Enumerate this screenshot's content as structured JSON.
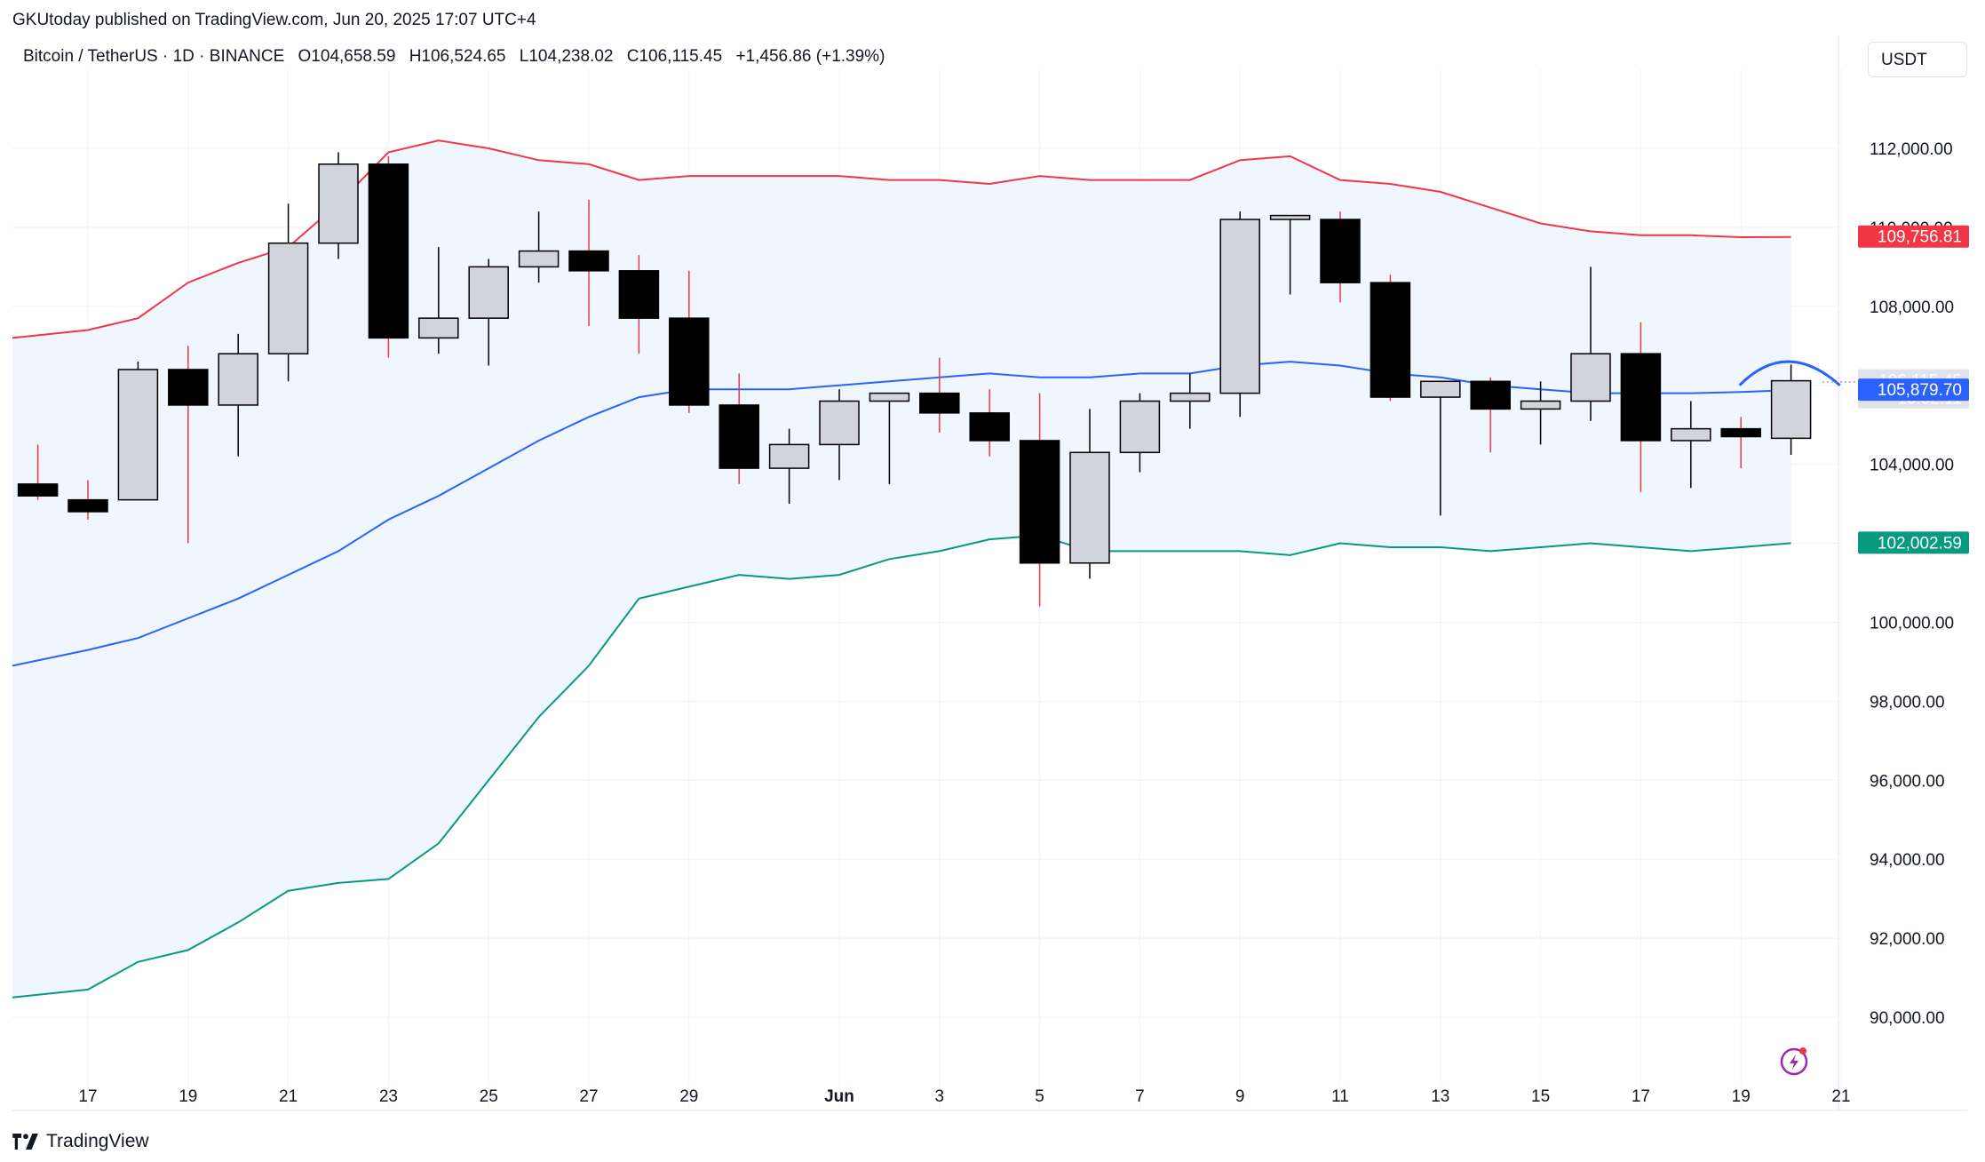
{
  "header": {
    "published": "GKUtoday published on TradingView.com, Jun 20, 2025 17:07 UTC+4"
  },
  "legend": {
    "symbol": "Bitcoin / TetherUS · 1D · BINANCE",
    "open": "O104,658.59",
    "high": "H106,524.65",
    "low": "L104,238.02",
    "close": "C106,115.45",
    "change": "+1,456.86 (+1.39%)"
  },
  "currency_label": "USDT",
  "brand_label": "TradingView",
  "colors": {
    "upper_band": "#f23645",
    "basis": "#2962ff",
    "lower_band": "#089981",
    "band_fill": "#f0f6fd",
    "candle_up_fill": "#d1d4dc",
    "candle_down_fill": "#000000",
    "grid": "#f0f3fa"
  },
  "price_tags": {
    "upper": "109,756.81",
    "last_price": "106,115.45",
    "countdown": "10:52:11",
    "basis": "105,879.70",
    "lower": "102,002.59"
  },
  "chart_data": {
    "type": "candlestick",
    "title": "Bitcoin / TetherUS · 1D · BINANCE",
    "indicator": "Bollinger Bands",
    "y_axis": {
      "ticks": [
        90000,
        92000,
        94000,
        96000,
        98000,
        100000,
        102000,
        104000,
        106000,
        108000,
        110000,
        112000
      ],
      "ylim": [
        88600,
        114400
      ],
      "side": "right"
    },
    "x_axis": {
      "ticks": [
        {
          "date": "2025-05-17",
          "label": "17"
        },
        {
          "date": "2025-05-19",
          "label": "19"
        },
        {
          "date": "2025-05-21",
          "label": "21"
        },
        {
          "date": "2025-05-23",
          "label": "23"
        },
        {
          "date": "2025-05-25",
          "label": "25"
        },
        {
          "date": "2025-05-27",
          "label": "27"
        },
        {
          "date": "2025-05-29",
          "label": "29"
        },
        {
          "date": "2025-06-01",
          "label": "Jun"
        },
        {
          "date": "2025-06-03",
          "label": "3"
        },
        {
          "date": "2025-06-05",
          "label": "5"
        },
        {
          "date": "2025-06-07",
          "label": "7"
        },
        {
          "date": "2025-06-09",
          "label": "9"
        },
        {
          "date": "2025-06-11",
          "label": "11"
        },
        {
          "date": "2025-06-13",
          "label": "13"
        },
        {
          "date": "2025-06-15",
          "label": "15"
        },
        {
          "date": "2025-06-17",
          "label": "17"
        },
        {
          "date": "2025-06-19",
          "label": "19"
        },
        {
          "date": "2025-06-21",
          "label": "21"
        }
      ]
    },
    "candles": [
      {
        "date": "2025-05-16",
        "o": 103500,
        "h": 104500,
        "l": 103100,
        "c": 103200
      },
      {
        "date": "2025-05-17",
        "o": 103100,
        "h": 103600,
        "l": 102600,
        "c": 102800
      },
      {
        "date": "2025-05-18",
        "o": 103100,
        "h": 106600,
        "l": 103100,
        "c": 106400
      },
      {
        "date": "2025-05-19",
        "o": 106400,
        "h": 107000,
        "l": 102000,
        "c": 105500
      },
      {
        "date": "2025-05-20",
        "o": 105500,
        "h": 107300,
        "l": 104200,
        "c": 106800
      },
      {
        "date": "2025-05-21",
        "o": 106800,
        "h": 110600,
        "l": 106100,
        "c": 109600
      },
      {
        "date": "2025-05-22",
        "o": 109600,
        "h": 111900,
        "l": 109200,
        "c": 111600
      },
      {
        "date": "2025-05-23",
        "o": 111600,
        "h": 111800,
        "l": 106700,
        "c": 107200
      },
      {
        "date": "2025-05-24",
        "o": 107200,
        "h": 109500,
        "l": 106800,
        "c": 107700
      },
      {
        "date": "2025-05-25",
        "o": 107700,
        "h": 109200,
        "l": 106500,
        "c": 109000
      },
      {
        "date": "2025-05-26",
        "o": 109000,
        "h": 110400,
        "l": 108600,
        "c": 109400
      },
      {
        "date": "2025-05-27",
        "o": 109400,
        "h": 110700,
        "l": 107500,
        "c": 108900
      },
      {
        "date": "2025-05-28",
        "o": 108900,
        "h": 109300,
        "l": 106800,
        "c": 107700
      },
      {
        "date": "2025-05-29",
        "o": 107700,
        "h": 108900,
        "l": 105300,
        "c": 105500
      },
      {
        "date": "2025-05-30",
        "o": 105500,
        "h": 106300,
        "l": 103500,
        "c": 103900
      },
      {
        "date": "2025-05-31",
        "o": 103900,
        "h": 104900,
        "l": 103000,
        "c": 104500
      },
      {
        "date": "2025-06-01",
        "o": 104500,
        "h": 105900,
        "l": 103600,
        "c": 105600
      },
      {
        "date": "2025-06-02",
        "o": 105600,
        "h": 105800,
        "l": 103500,
        "c": 105800
      },
      {
        "date": "2025-06-03",
        "o": 105800,
        "h": 106700,
        "l": 104800,
        "c": 105300
      },
      {
        "date": "2025-06-04",
        "o": 105300,
        "h": 105900,
        "l": 104200,
        "c": 104600
      },
      {
        "date": "2025-06-05",
        "o": 104600,
        "h": 105800,
        "l": 100400,
        "c": 101500
      },
      {
        "date": "2025-06-06",
        "o": 101500,
        "h": 105400,
        "l": 101100,
        "c": 104300
      },
      {
        "date": "2025-06-07",
        "o": 104300,
        "h": 105800,
        "l": 103800,
        "c": 105600
      },
      {
        "date": "2025-06-08",
        "o": 105600,
        "h": 106300,
        "l": 104900,
        "c": 105800
      },
      {
        "date": "2025-06-09",
        "o": 105800,
        "h": 110400,
        "l": 105200,
        "c": 110200
      },
      {
        "date": "2025-06-10",
        "o": 110200,
        "h": 110300,
        "l": 108300,
        "c": 110300
      },
      {
        "date": "2025-06-11",
        "o": 110200,
        "h": 110400,
        "l": 108100,
        "c": 108600
      },
      {
        "date": "2025-06-12",
        "o": 108600,
        "h": 108800,
        "l": 105600,
        "c": 105700
      },
      {
        "date": "2025-06-13",
        "o": 105700,
        "h": 106100,
        "l": 102700,
        "c": 106100
      },
      {
        "date": "2025-06-14",
        "o": 106100,
        "h": 106200,
        "l": 104300,
        "c": 105400
      },
      {
        "date": "2025-06-15",
        "o": 105400,
        "h": 106100,
        "l": 104500,
        "c": 105600
      },
      {
        "date": "2025-06-16",
        "o": 105600,
        "h": 109000,
        "l": 105100,
        "c": 106800
      },
      {
        "date": "2025-06-17",
        "o": 106800,
        "h": 107600,
        "l": 103300,
        "c": 104600
      },
      {
        "date": "2025-06-18",
        "o": 104600,
        "h": 105600,
        "l": 103400,
        "c": 104900
      },
      {
        "date": "2025-06-19",
        "o": 104900,
        "h": 105200,
        "l": 103900,
        "c": 104700
      },
      {
        "date": "2025-06-20",
        "o": 104658.59,
        "h": 106524.65,
        "l": 104238.02,
        "c": 106115.45
      }
    ],
    "bands": {
      "upper": [
        107200,
        107400,
        107700,
        108600,
        109100,
        109500,
        110600,
        111900,
        112200,
        112000,
        111700,
        111600,
        111200,
        111300,
        111300,
        111300,
        111300,
        111200,
        111200,
        111100,
        111300,
        111200,
        111200,
        111200,
        111700,
        111800,
        111200,
        111100,
        110900,
        110500,
        110100,
        109900,
        109800,
        109800,
        109750,
        109756.81
      ],
      "basis": [
        98900,
        99300,
        99600,
        100100,
        100600,
        101200,
        101800,
        102600,
        103200,
        103900,
        104600,
        105200,
        105700,
        105900,
        105900,
        105900,
        106000,
        106100,
        106200,
        106300,
        106200,
        106200,
        106300,
        106300,
        106500,
        106600,
        106500,
        106300,
        106200,
        106000,
        105900,
        105800,
        105800,
        105800,
        105830,
        105879.7
      ],
      "lower": [
        90500,
        90700,
        91400,
        91700,
        92400,
        93200,
        93400,
        93500,
        94400,
        96000,
        97600,
        98900,
        100600,
        100900,
        101200,
        101100,
        101200,
        101600,
        101800,
        102100,
        102200,
        101800,
        101800,
        101800,
        101800,
        101700,
        102000,
        101900,
        101900,
        101800,
        101900,
        102000,
        101900,
        101800,
        101900,
        102002.59
      ]
    },
    "annotations": [
      "forecast arc above last candle",
      "lightning-bolt replay icon"
    ]
  }
}
